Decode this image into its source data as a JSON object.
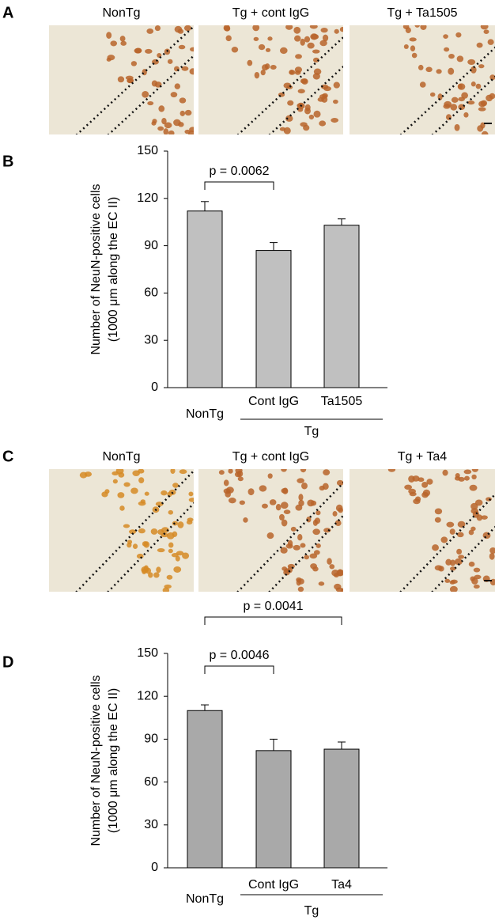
{
  "panels": [
    {
      "label": "A",
      "images": [
        "NonTg",
        "Tg + cont IgG",
        "Tg + Ta1505"
      ]
    },
    {
      "label": "C",
      "images": [
        "NonTg",
        "Tg + cont IgG",
        "Tg + Ta4"
      ]
    }
  ],
  "chart_data": [
    {
      "type": "bar",
      "panel_label": "B",
      "ylabel": [
        "Number of NeuN-positive cells",
        "(1000 μm along the EC II)"
      ],
      "categories": [
        "NonTg",
        "Cont IgG",
        "Ta1505"
      ],
      "group_label": "Tg",
      "values": [
        112,
        87,
        103
      ],
      "errors": [
        6,
        5,
        4
      ],
      "color": "#c0c0c0",
      "ylim": [
        0,
        150
      ],
      "yticks": [
        0,
        30,
        60,
        90,
        120,
        150
      ],
      "annotations": [
        {
          "from": 0,
          "to": 1,
          "text": "p = 0.0062"
        }
      ]
    },
    {
      "type": "bar",
      "panel_label": "D",
      "ylabel": [
        "Number of NeuN-positive cells",
        "(1000 μm along the EC II)"
      ],
      "categories": [
        "NonTg",
        "Cont IgG",
        "Ta4"
      ],
      "group_label": "Tg",
      "values": [
        110,
        82,
        83
      ],
      "errors": [
        4,
        8,
        5
      ],
      "color": "#a9a9a9",
      "ylim": [
        0,
        150
      ],
      "yticks": [
        0,
        30,
        60,
        90,
        120,
        150
      ],
      "annotations": [
        {
          "from": 0,
          "to": 1,
          "text": "p = 0.0046"
        },
        {
          "from": 0,
          "to": 2,
          "text": "p = 0.0041"
        }
      ]
    }
  ]
}
